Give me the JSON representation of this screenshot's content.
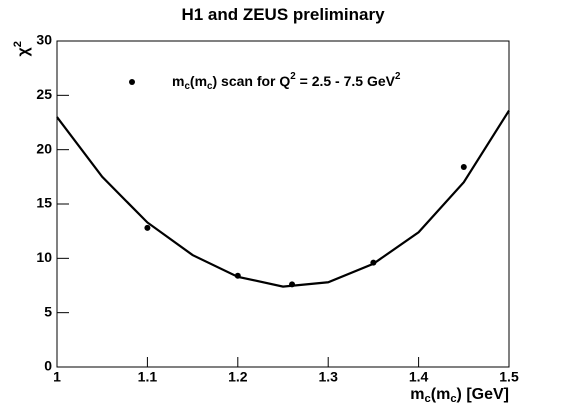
{
  "chart_data": {
    "type": "scatter",
    "title": "H1 and ZEUS preliminary",
    "xlabel": "m_c(m_c) [GeV]",
    "ylabel": "χ^2",
    "xlim": [
      1,
      1.5
    ],
    "xticks": [
      1,
      1.1,
      1.2,
      1.3,
      1.4,
      1.5
    ],
    "ylim": [
      0,
      30
    ],
    "yticks": [
      0,
      5,
      10,
      15,
      20,
      25,
      30
    ],
    "series": [
      {
        "name": "m_c(m_c) scan for Q^2 = 2.5 - 7.5 GeV^2",
        "color": "#000000",
        "style": "marker",
        "x": [
          1.1,
          1.2,
          1.26,
          1.35,
          1.45
        ],
        "values": [
          12.8,
          8.4,
          7.6,
          9.6,
          18.4
        ]
      },
      {
        "color": "#000000",
        "style": "line",
        "x": [
          1.0,
          1.05,
          1.1,
          1.15,
          1.2,
          1.25,
          1.3,
          1.35,
          1.4,
          1.45,
          1.5
        ],
        "values": [
          23.0,
          17.5,
          13.3,
          10.3,
          8.3,
          7.4,
          7.8,
          9.5,
          12.4,
          17.0,
          23.6
        ]
      }
    ]
  }
}
